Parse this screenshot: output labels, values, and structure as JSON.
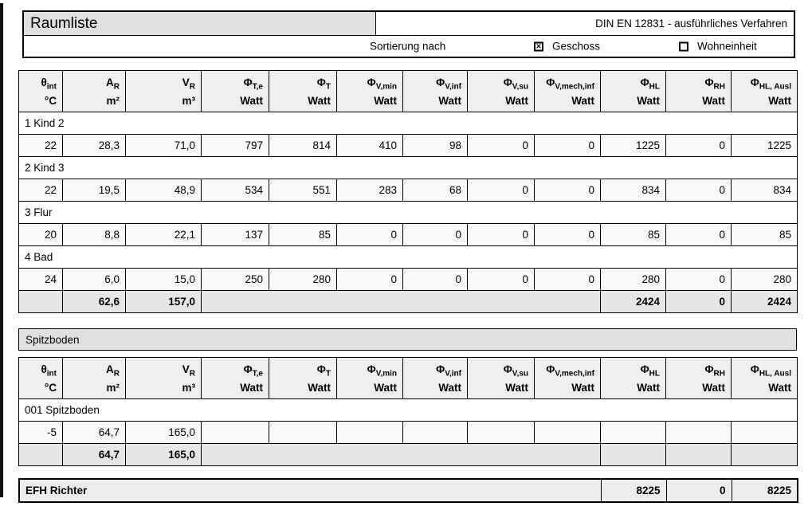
{
  "header": {
    "title": "Raumliste",
    "standard": "DIN EN 12831 - ausführliches Verfahren",
    "sort_label": "Sortierung nach",
    "sort_options": [
      {
        "label": "Geschoss",
        "checked": true
      },
      {
        "label": "Wohneinheit",
        "checked": false
      }
    ]
  },
  "columns": [
    {
      "base": "θ",
      "sub": "int",
      "unit": "°C"
    },
    {
      "base": "A",
      "sub": "R",
      "unit": "m²"
    },
    {
      "base": "V",
      "sub": "R",
      "unit": "m³"
    },
    {
      "base": "Φ",
      "sub": "T,e",
      "unit": "Watt"
    },
    {
      "base": "Φ",
      "sub": "T",
      "unit": "Watt"
    },
    {
      "base": "Φ",
      "sub": "V,min",
      "unit": "Watt"
    },
    {
      "base": "Φ",
      "sub": "V,inf",
      "unit": "Watt"
    },
    {
      "base": "Φ",
      "sub": "V,su",
      "unit": "Watt"
    },
    {
      "base": "Φ",
      "sub": "V,mech,inf",
      "unit": "Watt"
    },
    {
      "base": "Φ",
      "sub": "HL",
      "unit": "Watt"
    },
    {
      "base": "Φ",
      "sub": "RH",
      "unit": "Watt"
    },
    {
      "base": "Φ",
      "sub": "HL, Ausl",
      "unit": "Watt"
    }
  ],
  "sections": [
    {
      "title": "",
      "rooms": [
        {
          "name": "1 Kind 2",
          "values": [
            "22",
            "28,3",
            "71,0",
            "797",
            "814",
            "410",
            "98",
            "0",
            "0",
            "1225",
            "0",
            "1225"
          ]
        },
        {
          "name": "2 Kind 3",
          "values": [
            "22",
            "19,5",
            "48,9",
            "534",
            "551",
            "283",
            "68",
            "0",
            "0",
            "834",
            "0",
            "834"
          ]
        },
        {
          "name": "3 Flur",
          "values": [
            "20",
            "8,8",
            "22,1",
            "137",
            "85",
            "0",
            "0",
            "0",
            "0",
            "85",
            "0",
            "85"
          ]
        },
        {
          "name": "4 Bad",
          "values": [
            "24",
            "6,0",
            "15,0",
            "250",
            "280",
            "0",
            "0",
            "0",
            "0",
            "280",
            "0",
            "280"
          ]
        }
      ],
      "totals": {
        "a_r": "62,6",
        "v_r": "157,0",
        "phi_hl": "2424",
        "phi_rh": "0",
        "phi_hl_ausl": "2424"
      }
    },
    {
      "title": "Spitzboden",
      "rooms": [
        {
          "name": "001 Spitzboden",
          "values": [
            "-5",
            "64,7",
            "165,0",
            "",
            "",
            "",
            "",
            "",
            "",
            "",
            "",
            ""
          ]
        }
      ],
      "totals": {
        "a_r": "64,7",
        "v_r": "165,0",
        "phi_hl": "",
        "phi_rh": "",
        "phi_hl_ausl": ""
      }
    }
  ],
  "footer": {
    "label": "EFH Richter",
    "phi_hl": "8225",
    "phi_rh": "0",
    "phi_hl_ausl": "8225"
  },
  "colors": {
    "section_bar": "#e0e0e0",
    "table_header": "#efefef",
    "totals_row": "#e6e6e6",
    "border": "#000000"
  }
}
